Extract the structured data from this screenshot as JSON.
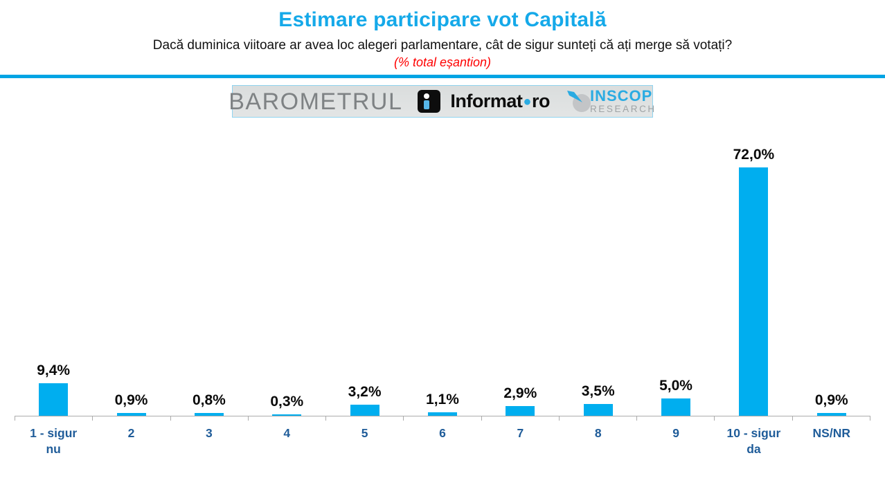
{
  "header": {
    "title": "Estimare participare vot Capitală",
    "subtitle": "Dacă duminica viitoare ar avea loc alegeri parlamentare, cât de sigur sunteți că ați merge să votați?",
    "sample_note": "(% total eșantion)"
  },
  "banner": {
    "barometrul": "BAROMETRUL",
    "informat_name": "Informat",
    "informat_tld": "ro",
    "inscop_name": "INSCOP",
    "inscop_sub": "RESEARCH"
  },
  "colors": {
    "bar": "#00aeef",
    "title": "#15a9e9",
    "divider": "#00a4e4",
    "axis_label": "#1f5c99",
    "sample_note": "#ff0000",
    "axis_line": "#ababab"
  },
  "chart_data": {
    "type": "bar",
    "title": "Estimare participare vot Capitală",
    "categories": [
      "1 - sigur nu",
      "2",
      "3",
      "4",
      "5",
      "6",
      "7",
      "8",
      "9",
      "10 - sigur da",
      "NS/NR"
    ],
    "values": [
      9.4,
      0.9,
      0.8,
      0.3,
      3.2,
      1.1,
      2.9,
      3.5,
      5.0,
      72.0,
      0.9
    ],
    "value_labels": [
      "9,4%",
      "0,9%",
      "0,8%",
      "0,3%",
      "3,2%",
      "1,1%",
      "2,9%",
      "3,5%",
      "5,0%",
      "72,0%",
      "0,9%"
    ],
    "xlabel": "",
    "ylabel": "",
    "ylim": [
      0,
      72.5
    ],
    "grid": false,
    "legend": false,
    "data_labels": true,
    "bar_color": "#00aeef"
  }
}
